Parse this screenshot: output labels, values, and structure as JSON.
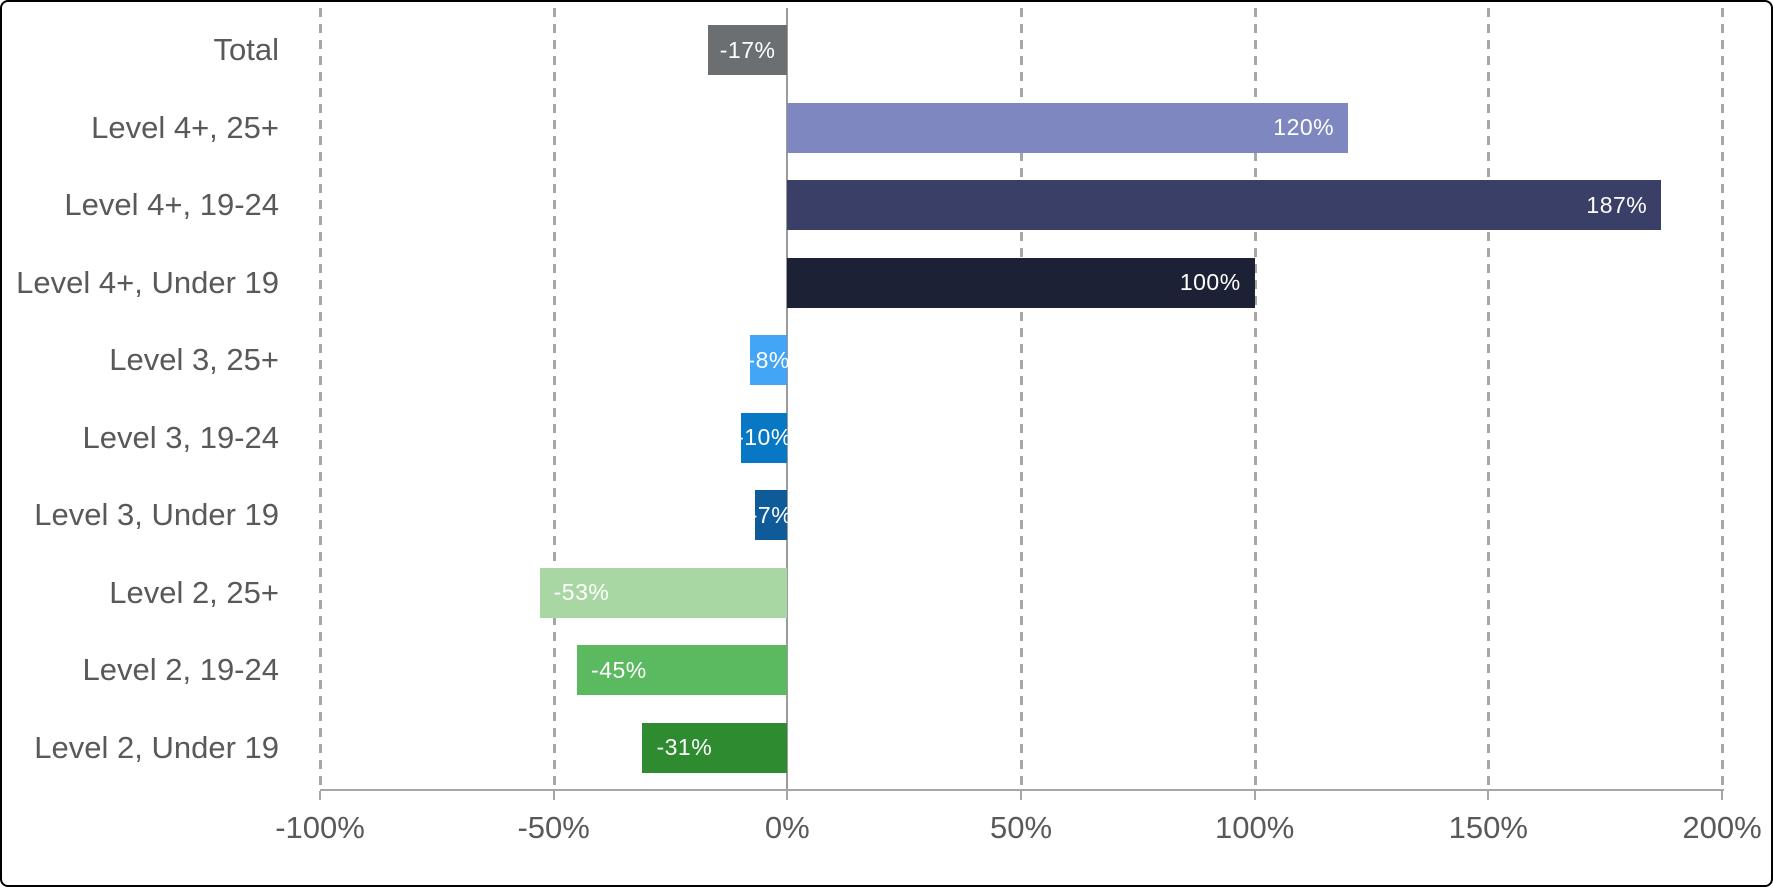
{
  "chart_data": {
    "type": "bar",
    "orientation": "horizontal",
    "title": "",
    "xlabel": "",
    "ylabel": "",
    "categories": [
      "Total",
      "Level 4+, 25+",
      "Level 4+, 19-24",
      "Level 4+, Under 19",
      "Level 3, 25+",
      "Level 3, 19-24",
      "Level 3, Under 19",
      "Level 2, 25+",
      "Level 2, 19-24",
      "Level 2, Under 19"
    ],
    "values": [
      -17,
      120,
      187,
      100,
      -8,
      -10,
      -7,
      -53,
      -45,
      -31
    ],
    "data_labels": [
      "-17%",
      "120%",
      "187%",
      "100%",
      "-8%",
      "-10%",
      "-7%",
      "-53%",
      "-45%",
      "-31%"
    ],
    "bar_colors": [
      "#6C6F72",
      "#7F87C0",
      "#3A3F68",
      "#1C2135",
      "#42A5F5",
      "#0878C4",
      "#0F5A99",
      "#A9D7A4",
      "#5BB960",
      "#2E8B30"
    ],
    "x_tick_labels": [
      "-100%",
      "-50%",
      "0%",
      "50%",
      "100%",
      "150%",
      "200%"
    ],
    "x_tick_values": [
      -100,
      -50,
      0,
      50,
      100,
      150,
      200
    ],
    "xlim": [
      -100,
      200
    ],
    "grid": "dashed-vertical",
    "zero_line": "solid",
    "legend": "none",
    "value_label_color": "#FFFFFF",
    "category_label_color": "#595959",
    "axis_label_color": "#595959",
    "gridline_color": "#A6A6A6",
    "axis_line_color": "#A6A6A6",
    "zero_line_color": "#9B9B9B",
    "background_color": "#FFFFFF",
    "border_color": "#000000"
  }
}
